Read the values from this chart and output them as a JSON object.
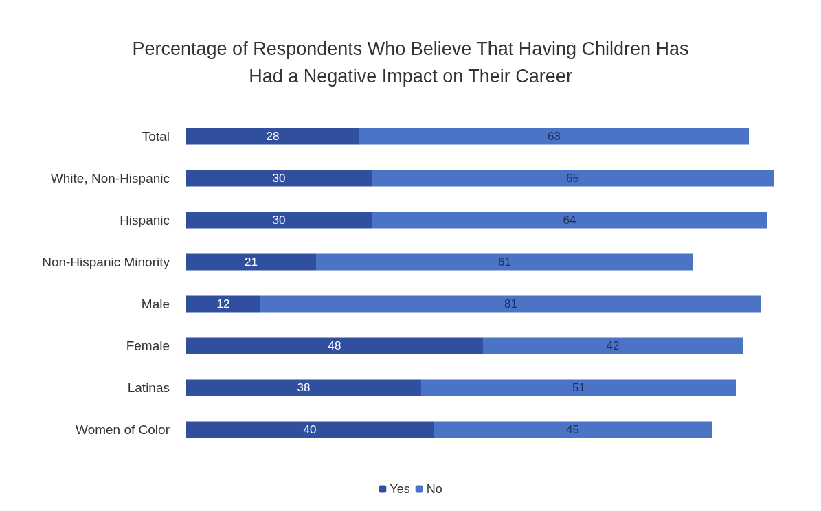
{
  "chart_data": {
    "type": "bar",
    "orientation": "horizontal",
    "stacked": true,
    "title": "Percentage of Respondents Who Believe That Having Children Has\nHad a Negative Impact on Their Career",
    "categories": [
      "Total",
      "White, Non-Hispanic",
      "Hispanic",
      "Non-Hispanic Minority",
      "Male",
      "Female",
      "Latinas",
      "Women of Color"
    ],
    "series": [
      {
        "name": "Yes",
        "color": "#30509f",
        "values": [
          28,
          30,
          30,
          21,
          12,
          48,
          38,
          40
        ]
      },
      {
        "name": "No",
        "color": "#4b74c6",
        "values": [
          63,
          65,
          64,
          61,
          81,
          42,
          51,
          45
        ]
      }
    ],
    "data_labels": true,
    "legend": "bottom",
    "grid": false,
    "tick_labels": "y"
  }
}
